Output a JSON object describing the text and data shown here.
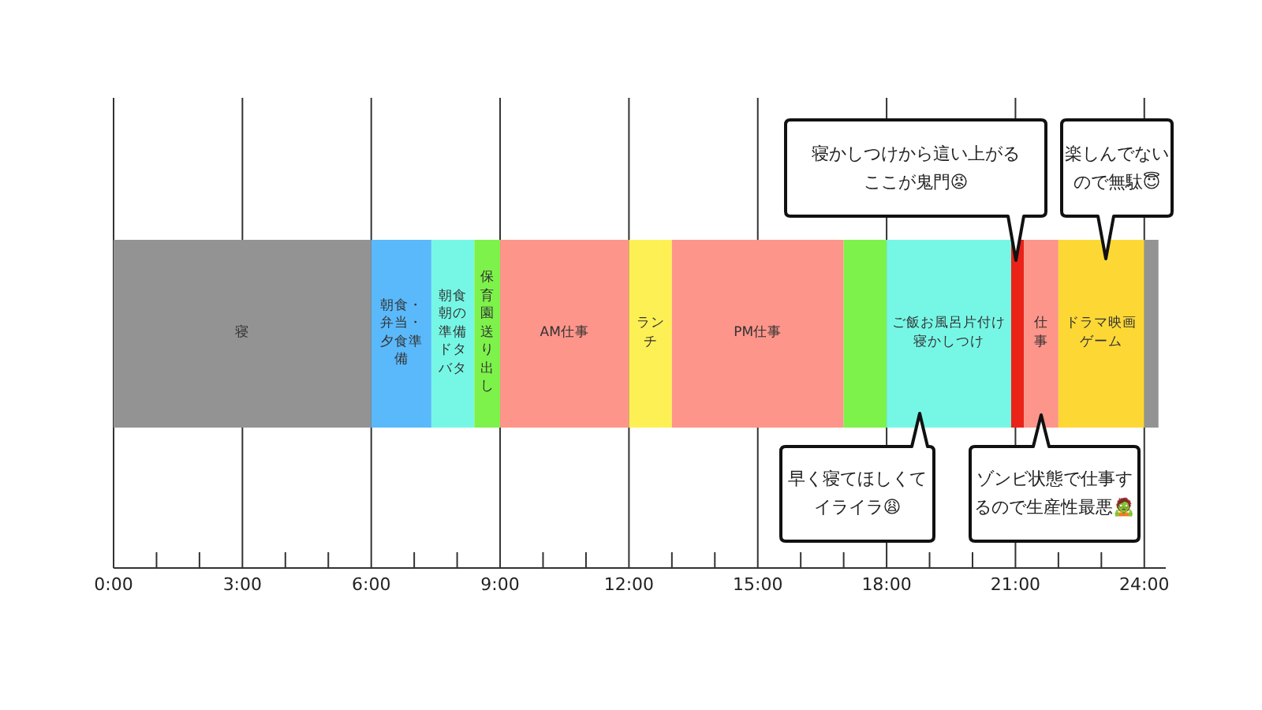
{
  "chart_data": {
    "type": "bar",
    "orientation": "horizontal",
    "stacked": true,
    "categories": [
      null
    ],
    "series": [
      {
        "name": "寝",
        "color": "#939393",
        "values": [
          6
        ]
      },
      {
        "name": "朝食・弁当・夕食準備",
        "color": "#5ab9fb",
        "values": [
          1.4
        ]
      },
      {
        "name": "朝食朝の準備ドタバタ",
        "color": "#76f7e6",
        "values": [
          1
        ]
      },
      {
        "name": "保育園送り出し",
        "color": "#7df24b",
        "values": [
          0.6
        ]
      },
      {
        "name": "AM仕事",
        "color": "#fd958a",
        "values": [
          3
        ]
      },
      {
        "name": "ランチ",
        "color": "#fdf055",
        "values": [
          1
        ]
      },
      {
        "name": "PM仕事",
        "color": "#fd958a",
        "values": [
          4
        ]
      },
      {
        "color": "#7df24b",
        "values": [
          1
        ]
      },
      {
        "name": "ご飯お風呂片付け寝かしつけ",
        "color": "#76f7e6",
        "values": [
          2.9
        ]
      },
      {
        "color": "#ea2218",
        "values": [
          0.3
        ]
      },
      {
        "name": "仕事",
        "color": "#fd958a",
        "values": [
          0.8
        ]
      },
      {
        "name": "ドラマ映画ゲーム",
        "color": "#fdd835",
        "values": [
          2
        ]
      },
      {
        "color": "#939393",
        "values": [
          0.33
        ]
      }
    ],
    "xlim": [
      0,
      24.5
    ],
    "xticks": [
      {
        "value": 0,
        "label": "0:00"
      },
      {
        "value": 1,
        "label": null
      },
      {
        "value": 2,
        "label": null
      },
      {
        "value": 3,
        "label": "3:00"
      },
      {
        "value": 4,
        "label": null
      },
      {
        "value": 5,
        "label": null
      },
      {
        "value": 6,
        "label": "6:00"
      },
      {
        "value": 7,
        "label": null
      },
      {
        "value": 8,
        "label": null
      },
      {
        "value": 9,
        "label": "9:00"
      },
      {
        "value": 10,
        "label": null
      },
      {
        "value": 11,
        "label": null
      },
      {
        "value": 12,
        "label": "12:00"
      },
      {
        "value": 13,
        "label": null
      },
      {
        "value": 14,
        "label": null
      },
      {
        "value": 15,
        "label": "15:00"
      },
      {
        "value": 16,
        "label": null
      },
      {
        "value": 17,
        "label": null
      },
      {
        "value": 18,
        "label": "18:00"
      },
      {
        "value": 19,
        "label": null
      },
      {
        "value": 20,
        "label": null
      },
      {
        "value": 21,
        "label": "21:00"
      },
      {
        "value": 22,
        "label": null
      },
      {
        "value": 23,
        "label": null
      },
      {
        "value": 24,
        "label": "24:00"
      }
    ],
    "grid": "x",
    "annotations": [
      "寝かしつけから這い上がるここが鬼門😡",
      "楽しんでないので無駄😇",
      "早く寝てほしくてイライラ😩",
      "ゾンビ状態で仕事するので生産性最悪🧟"
    ]
  }
}
